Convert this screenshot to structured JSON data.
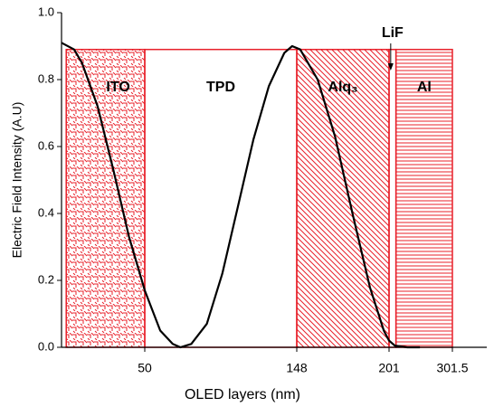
{
  "chart_data": {
    "type": "line",
    "x_label": "OLED layers (nm)",
    "y_label": "Electric Field Intensity (A.U)",
    "xlim": [
      -3,
      320
    ],
    "ylim": [
      0,
      1.0
    ],
    "xticks": [
      50,
      148,
      201,
      301.5
    ],
    "yticks": [
      {
        "value": 0,
        "label": "0.0"
      },
      0.2,
      0.4,
      0.6,
      0.8,
      {
        "value": 1.0,
        "label": "1.0"
      }
    ],
    "x": [
      -3,
      5,
      10,
      20,
      30,
      40,
      50,
      60,
      68,
      73,
      80,
      90,
      100,
      110,
      120,
      130,
      140,
      145,
      150,
      160,
      170,
      180,
      190,
      198,
      201,
      210,
      230,
      250
    ],
    "series": [
      {
        "color": "#000000",
        "values": [
          0.91,
          0.89,
          0.85,
          0.72,
          0.53,
          0.33,
          0.17,
          0.05,
          0.01,
          0.0,
          0.01,
          0.07,
          0.22,
          0.42,
          0.62,
          0.78,
          0.88,
          0.9,
          0.89,
          0.8,
          0.63,
          0.4,
          0.18,
          0.05,
          0.02,
          0.005,
          0,
          0
        ]
      }
    ],
    "layer_color": "#e8202a",
    "layers": [
      {
        "name": "ITO",
        "start": 0,
        "end": 50,
        "top": 0.89
      },
      {
        "name": "TPD",
        "start": 50,
        "end": 148,
        "top": 0.89
      },
      {
        "name": "Alq₃",
        "start": 148,
        "end": 201,
        "top": 0.89
      },
      {
        "name": "LiF",
        "start": 201,
        "end": 212,
        "top": 0.89
      },
      {
        "name": "Al",
        "start": 212,
        "end": 301.5,
        "top": 0.89
      }
    ]
  }
}
